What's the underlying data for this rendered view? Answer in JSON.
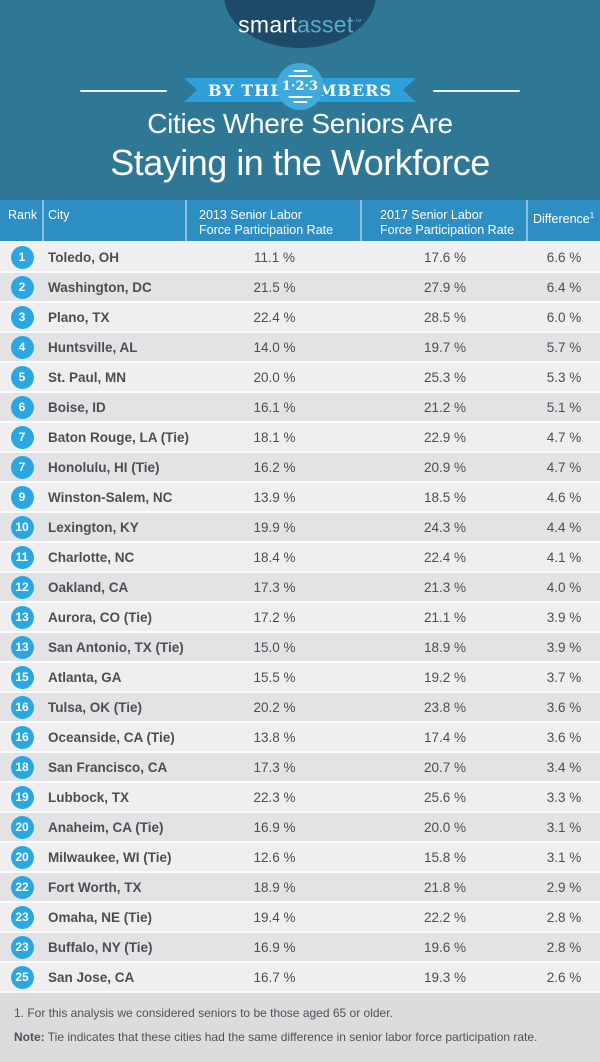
{
  "brand": {
    "logo_smart": "smart",
    "logo_asset": "asset",
    "logo_tm": "™"
  },
  "banner": {
    "left_word": "BY THE",
    "right_word": "NUMBERS",
    "circle_text": "1·2·3"
  },
  "title": {
    "line1": "Cities Where Seniors Are",
    "line2": "Staying in the Workforce"
  },
  "table": {
    "header": {
      "rank": "Rank",
      "city": "City",
      "r2013_line1": "2013 Senior Labor",
      "r2013_line2": "Force Participation Rate",
      "r2017_line1": "2017 Senior Labor",
      "r2017_line2": "Force Participation Rate",
      "diff_label": "Difference",
      "diff_sup": "1"
    },
    "rows": [
      {
        "rank": "1",
        "city": "Toledo, OH",
        "r2013": "11.1 %",
        "r2017": "17.6 %",
        "diff": "6.6 %"
      },
      {
        "rank": "2",
        "city": "Washington, DC",
        "r2013": "21.5 %",
        "r2017": "27.9 %",
        "diff": "6.4 %"
      },
      {
        "rank": "3",
        "city": "Plano, TX",
        "r2013": "22.4 %",
        "r2017": "28.5 %",
        "diff": "6.0 %"
      },
      {
        "rank": "4",
        "city": "Huntsville, AL",
        "r2013": "14.0 %",
        "r2017": "19.7 %",
        "diff": "5.7 %"
      },
      {
        "rank": "5",
        "city": "St. Paul, MN",
        "r2013": "20.0 %",
        "r2017": "25.3 %",
        "diff": "5.3 %"
      },
      {
        "rank": "6",
        "city": "Boise, ID",
        "r2013": "16.1 %",
        "r2017": "21.2 %",
        "diff": "5.1 %"
      },
      {
        "rank": "7",
        "city": "Baton Rouge, LA (Tie)",
        "r2013": "18.1 %",
        "r2017": "22.9 %",
        "diff": "4.7 %"
      },
      {
        "rank": "7",
        "city": "Honolulu, HI (Tie)",
        "r2013": "16.2 %",
        "r2017": "20.9 %",
        "diff": "4.7 %"
      },
      {
        "rank": "9",
        "city": "Winston-Salem, NC",
        "r2013": "13.9 %",
        "r2017": "18.5 %",
        "diff": "4.6 %"
      },
      {
        "rank": "10",
        "city": "Lexington, KY",
        "r2013": "19.9 %",
        "r2017": "24.3 %",
        "diff": "4.4 %"
      },
      {
        "rank": "11",
        "city": "Charlotte, NC",
        "r2013": "18.4 %",
        "r2017": "22.4 %",
        "diff": "4.1 %"
      },
      {
        "rank": "12",
        "city": "Oakland, CA",
        "r2013": "17.3 %",
        "r2017": "21.3 %",
        "diff": "4.0 %"
      },
      {
        "rank": "13",
        "city": "Aurora, CO (Tie)",
        "r2013": "17.2 %",
        "r2017": "21.1 %",
        "diff": "3.9 %"
      },
      {
        "rank": "13",
        "city": "San Antonio, TX (Tie)",
        "r2013": "15.0 %",
        "r2017": "18.9 %",
        "diff": "3.9 %"
      },
      {
        "rank": "15",
        "city": "Atlanta, GA",
        "r2013": "15.5 %",
        "r2017": "19.2 %",
        "diff": "3.7 %"
      },
      {
        "rank": "16",
        "city": "Tulsa, OK (Tie)",
        "r2013": "20.2 %",
        "r2017": "23.8 %",
        "diff": "3.6 %"
      },
      {
        "rank": "16",
        "city": "Oceanside, CA (Tie)",
        "r2013": "13.8 %",
        "r2017": "17.4 %",
        "diff": "3.6 %"
      },
      {
        "rank": "18",
        "city": "San Francisco, CA",
        "r2013": "17.3 %",
        "r2017": "20.7 %",
        "diff": "3.4 %"
      },
      {
        "rank": "19",
        "city": "Lubbock, TX",
        "r2013": "22.3 %",
        "r2017": "25.6 %",
        "diff": "3.3 %"
      },
      {
        "rank": "20",
        "city": "Anaheim, CA (Tie)",
        "r2013": "16.9 %",
        "r2017": "20.0 %",
        "diff": "3.1 %"
      },
      {
        "rank": "20",
        "city": "Milwaukee, WI (Tie)",
        "r2013": "12.6 %",
        "r2017": "15.8 %",
        "diff": "3.1 %"
      },
      {
        "rank": "22",
        "city": "Fort Worth, TX",
        "r2013": "18.9 %",
        "r2017": "21.8 %",
        "diff": "2.9 %"
      },
      {
        "rank": "23",
        "city": "Omaha, NE (Tie)",
        "r2013": "19.4 %",
        "r2017": "22.2 %",
        "diff": "2.8 %"
      },
      {
        "rank": "23",
        "city": "Buffalo, NY (Tie)",
        "r2013": "16.9 %",
        "r2017": "19.6 %",
        "diff": "2.8 %"
      },
      {
        "rank": "25",
        "city": "San Jose, CA",
        "r2013": "16.7 %",
        "r2017": "19.3 %",
        "diff": "2.6 %"
      }
    ]
  },
  "footnotes": {
    "line1": "1. For this analysis we considered seniors to be those aged 65 or older.",
    "note_label": "Note:",
    "note_text": " Tie indicates that these cities had the same difference in senior labor force participation rate."
  },
  "colors": {
    "teal_background": "#2e7896",
    "navy_ellipse": "#1c4a67",
    "ribbon_blue": "#2e9fd9",
    "banner_circle_blue": "#41aadd",
    "table_header_blue": "#2d8ec3",
    "rank_badge_blue": "#2aa7e0",
    "row_light": "#efeff0",
    "row_dark": "#e3e3e5",
    "footer_gray": "#dcdcde",
    "text_dark": "#4e4e52",
    "logo_asset_blue": "#58abd0"
  },
  "chart_data": {
    "type": "table",
    "title": "Cities Where Seniors Are Staying in the Workforce",
    "columns": [
      "Rank",
      "City",
      "2013 Senior Labor Force Participation Rate",
      "2017 Senior Labor Force Participation Rate",
      "Difference"
    ],
    "rows": [
      [
        1,
        "Toledo, OH",
        11.1,
        17.6,
        6.6
      ],
      [
        2,
        "Washington, DC",
        21.5,
        27.9,
        6.4
      ],
      [
        3,
        "Plano, TX",
        22.4,
        28.5,
        6.0
      ],
      [
        4,
        "Huntsville, AL",
        14.0,
        19.7,
        5.7
      ],
      [
        5,
        "St. Paul, MN",
        20.0,
        25.3,
        5.3
      ],
      [
        6,
        "Boise, ID",
        16.1,
        21.2,
        5.1
      ],
      [
        7,
        "Baton Rouge, LA (Tie)",
        18.1,
        22.9,
        4.7
      ],
      [
        7,
        "Honolulu, HI (Tie)",
        16.2,
        20.9,
        4.7
      ],
      [
        9,
        "Winston-Salem, NC",
        13.9,
        18.5,
        4.6
      ],
      [
        10,
        "Lexington, KY",
        19.9,
        24.3,
        4.4
      ],
      [
        11,
        "Charlotte, NC",
        18.4,
        22.4,
        4.1
      ],
      [
        12,
        "Oakland, CA",
        17.3,
        21.3,
        4.0
      ],
      [
        13,
        "Aurora, CO (Tie)",
        17.2,
        21.1,
        3.9
      ],
      [
        13,
        "San Antonio, TX (Tie)",
        15.0,
        18.9,
        3.9
      ],
      [
        15,
        "Atlanta, GA",
        15.5,
        19.2,
        3.7
      ],
      [
        16,
        "Tulsa, OK (Tie)",
        20.2,
        23.8,
        3.6
      ],
      [
        16,
        "Oceanside, CA (Tie)",
        13.8,
        17.4,
        3.6
      ],
      [
        18,
        "San Francisco, CA",
        17.3,
        20.7,
        3.4
      ],
      [
        19,
        "Lubbock, TX",
        22.3,
        25.6,
        3.3
      ],
      [
        20,
        "Anaheim, CA (Tie)",
        16.9,
        20.0,
        3.1
      ],
      [
        20,
        "Milwaukee, WI (Tie)",
        12.6,
        15.8,
        3.1
      ],
      [
        22,
        "Fort Worth, TX",
        18.9,
        21.8,
        2.9
      ],
      [
        23,
        "Omaha, NE (Tie)",
        19.4,
        22.2,
        2.8
      ],
      [
        23,
        "Buffalo, NY (Tie)",
        16.9,
        19.6,
        2.8
      ],
      [
        25,
        "San Jose, CA",
        16.7,
        19.3,
        2.6
      ]
    ],
    "units": "percent",
    "notes": [
      "Seniors defined as aged 65 or older",
      "Tie indicates same difference in senior labor force participation rate"
    ]
  }
}
